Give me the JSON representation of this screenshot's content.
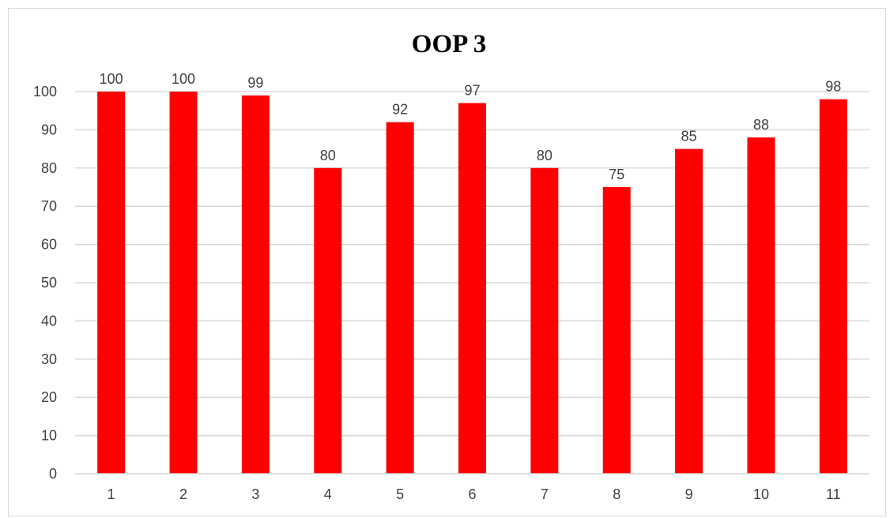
{
  "chart_data": {
    "type": "bar",
    "title": "OOP 3",
    "xlabel": "",
    "ylabel": "",
    "categories": [
      "1",
      "2",
      "3",
      "4",
      "5",
      "6",
      "7",
      "8",
      "9",
      "10",
      "11"
    ],
    "values": [
      100,
      100,
      99,
      80,
      92,
      97,
      80,
      75,
      85,
      88,
      98
    ],
    "value_labels": [
      "100",
      "100",
      "99",
      "80",
      "92",
      "97",
      "80",
      "75",
      "85",
      "88",
      "98"
    ],
    "ylim": [
      0,
      100
    ],
    "yticks": [
      "0",
      "10",
      "20",
      "30",
      "40",
      "50",
      "60",
      "70",
      "80",
      "90",
      "100"
    ],
    "grid": true,
    "legend": "none",
    "colors": {
      "bar": "#ff0000",
      "grid": "#d9d9d9",
      "text": "#404040",
      "title": "#000000"
    }
  }
}
